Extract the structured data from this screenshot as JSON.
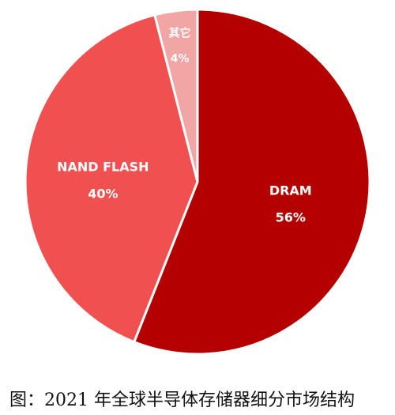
{
  "caption": "图：2021 年全球半导体存储器细分市场结构",
  "chart_data": {
    "type": "pie",
    "title": "",
    "start_angle_deg": 0,
    "direction": "clockwise",
    "slices": [
      {
        "label": "DRAM",
        "value": 56,
        "value_label": "56%",
        "color": "#b50000"
      },
      {
        "label": "NAND FLASH",
        "value": 40,
        "value_label": "40%",
        "color": "#f05050"
      },
      {
        "label": "其它",
        "value": 4,
        "value_label": "4%",
        "color": "#f2a5a5"
      }
    ],
    "slice_border_color": "#ffffff",
    "label_color": "#ffffff"
  }
}
